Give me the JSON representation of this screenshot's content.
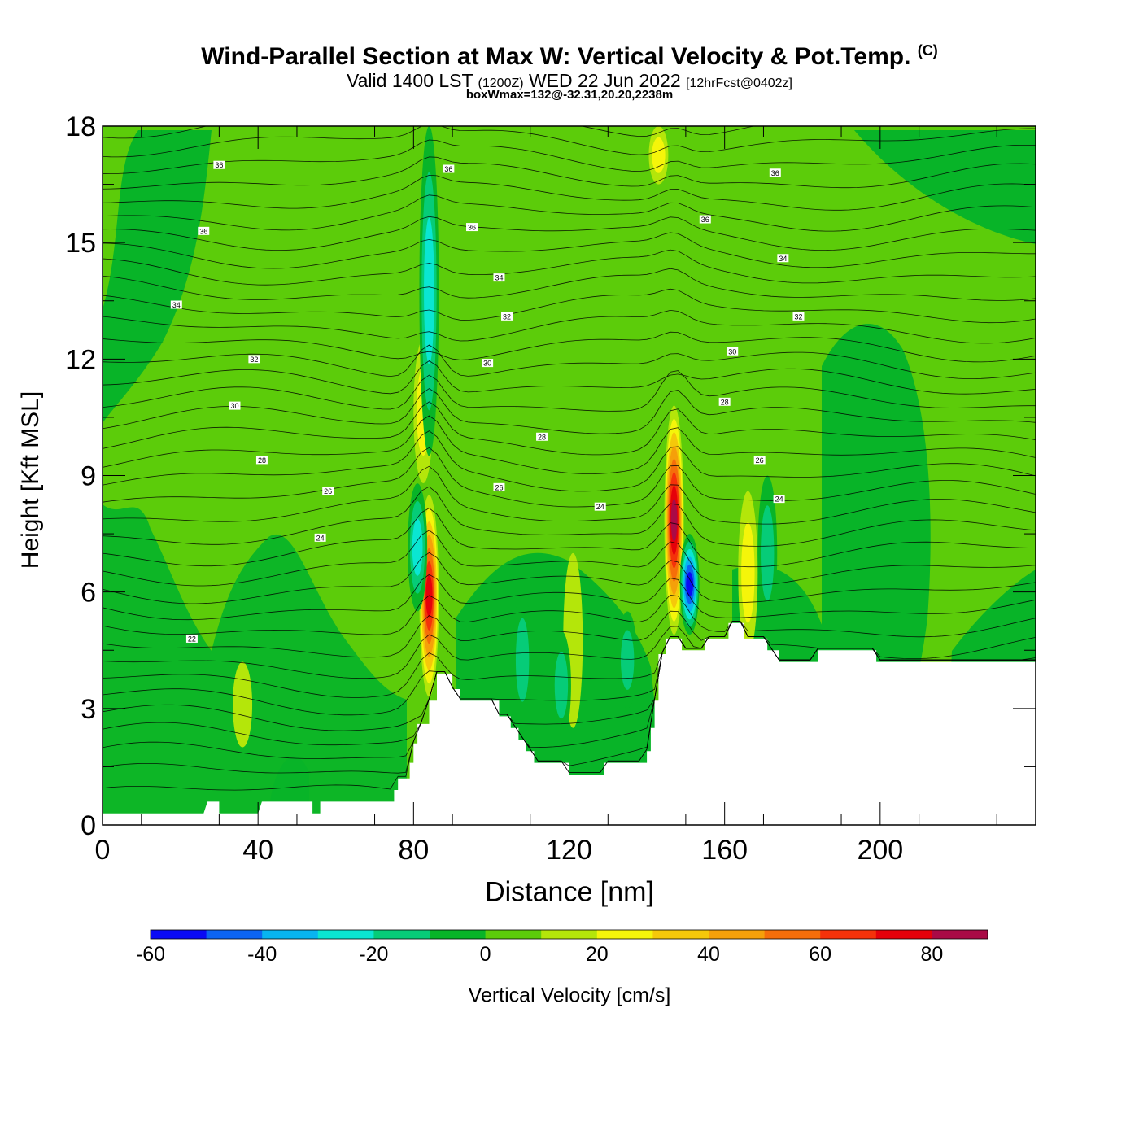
{
  "title": {
    "main": "Wind-Parallel Section at Max W: Vertical Velocity & Pot.Temp.",
    "copyright": "(C)",
    "valid_prefix": "Valid 1400 LST",
    "utc": "(1200Z)",
    "date": "WED 22 Jun 2022",
    "forecast": "[12hrFcst@0402z]",
    "box": "boxWmax=132@-32.31,20.20,2238m"
  },
  "chart_data": {
    "type": "heatmap",
    "xlabel": "Distance [nm]",
    "ylabel": "Height [Kft MSL]",
    "xlim": [
      0,
      240
    ],
    "ylim": [
      0,
      18
    ],
    "xticks": [
      "0",
      "40",
      "80",
      "120",
      "160",
      "200"
    ],
    "yticks": [
      "0",
      "3",
      "6",
      "9",
      "12",
      "15",
      "18"
    ],
    "xtick_values": [
      0,
      40,
      80,
      120,
      160,
      200
    ],
    "ytick_values": [
      0,
      3,
      6,
      9,
      12,
      15,
      18
    ],
    "colorbar": {
      "label": "Vertical Velocity [cm/s]",
      "min": -60,
      "max": 90,
      "step": 10,
      "tick_labels": [
        "-60",
        "-40",
        "-20",
        "0",
        "20",
        "40",
        "60",
        "80"
      ],
      "tick_values": [
        -60,
        -40,
        -20,
        0,
        20,
        40,
        60,
        80
      ],
      "colors": [
        "#0a0af5",
        "#0c64f2",
        "#08b4f0",
        "#0ae6d2",
        "#06cc78",
        "#08b428",
        "#5ccc0a",
        "#b4e60a",
        "#f5f50a",
        "#f5c80a",
        "#f5a00a",
        "#f56e0a",
        "#f5320a",
        "#e6000a",
        "#aa0a46"
      ]
    },
    "terrain_kft": [
      [
        0,
        0.3
      ],
      [
        26,
        0.3
      ],
      [
        27,
        0.6
      ],
      [
        30,
        0.6
      ],
      [
        30,
        0.3
      ],
      [
        40,
        0.3
      ],
      [
        41,
        0.6
      ],
      [
        54,
        0.6
      ],
      [
        54,
        0.3
      ],
      [
        56,
        0.3
      ],
      [
        56,
        0.6
      ],
      [
        75,
        0.6
      ],
      [
        75,
        0.9
      ],
      [
        76,
        0.9
      ],
      [
        76,
        1.2
      ],
      [
        79,
        1.2
      ],
      [
        79,
        1.6
      ],
      [
        80,
        1.6
      ],
      [
        80,
        2.1
      ],
      [
        81,
        2.1
      ],
      [
        81,
        2.6
      ],
      [
        84,
        2.6
      ],
      [
        84,
        3.2
      ],
      [
        86,
        3.2
      ],
      [
        86,
        3.9
      ],
      [
        90,
        3.9
      ],
      [
        90,
        3.5
      ],
      [
        92,
        3.5
      ],
      [
        92,
        3.2
      ],
      [
        102,
        3.2
      ],
      [
        102,
        2.8
      ],
      [
        105,
        2.8
      ],
      [
        105,
        2.5
      ],
      [
        107,
        2.5
      ],
      [
        107,
        2.2
      ],
      [
        109,
        2.2
      ],
      [
        109,
        1.9
      ],
      [
        111,
        1.9
      ],
      [
        111,
        1.6
      ],
      [
        120,
        1.6
      ],
      [
        120,
        1.3
      ],
      [
        129,
        1.3
      ],
      [
        129,
        1.6
      ],
      [
        140,
        1.6
      ],
      [
        140,
        1.9
      ],
      [
        141,
        1.9
      ],
      [
        141,
        2.5
      ],
      [
        142,
        2.5
      ],
      [
        142,
        3.2
      ],
      [
        143,
        3.2
      ],
      [
        143,
        4.4
      ],
      [
        145,
        4.4
      ],
      [
        145,
        4.8
      ],
      [
        149,
        4.8
      ],
      [
        149,
        4.5
      ],
      [
        155,
        4.5
      ],
      [
        155,
        4.8
      ],
      [
        161,
        4.8
      ],
      [
        161,
        5.2
      ],
      [
        165,
        5.2
      ],
      [
        165,
        4.8
      ],
      [
        171,
        4.8
      ],
      [
        171,
        4.5
      ],
      [
        174,
        4.5
      ],
      [
        174,
        4.2
      ],
      [
        184,
        4.2
      ],
      [
        184,
        4.5
      ],
      [
        199,
        4.5
      ],
      [
        199,
        4.2
      ],
      [
        240,
        4.2
      ]
    ],
    "updrafts": [
      {
        "x": 84,
        "y0": 3.3,
        "y1": 8.5,
        "w_max": 70
      },
      {
        "x": 82.5,
        "y0": 8.8,
        "y1": 12.5,
        "w_max": 25
      },
      {
        "x": 147,
        "y0": 4.9,
        "y1": 10.8,
        "w_max": 85
      },
      {
        "x": 166,
        "y0": 4.4,
        "y1": 8.6,
        "w_max": 25
      },
      {
        "x": 121,
        "y0": 2.5,
        "y1": 7.0,
        "w_max": 15
      },
      {
        "x": 36,
        "y0": 2.0,
        "y1": 4.2,
        "w_max": 15
      },
      {
        "x": 143,
        "y0": 16.5,
        "y1": 18,
        "w_max": 20
      }
    ],
    "downdrafts": [
      {
        "x": 81,
        "y0": 5.5,
        "y1": 8.8,
        "w_min": -25
      },
      {
        "x": 84,
        "y0": 9.5,
        "y1": 18,
        "w_min": -25
      },
      {
        "x": 151,
        "y0": 4.9,
        "y1": 7.5,
        "w_min": -55
      },
      {
        "x": 171,
        "y0": 5.0,
        "y1": 9.0,
        "w_min": -20
      },
      {
        "x": 108,
        "y0": 2.5,
        "y1": 6.0,
        "w_min": -15
      },
      {
        "x": 118,
        "y0": 2.2,
        "y1": 5.0,
        "w_min": -15
      },
      {
        "x": 135,
        "y0": 3.0,
        "y1": 5.5,
        "w_min": -15
      }
    ],
    "theta_contour_labels": [
      {
        "text": "22",
        "x": 23,
        "y": 4.8
      },
      {
        "text": "24",
        "x": 56,
        "y": 7.4
      },
      {
        "text": "24",
        "x": 128,
        "y": 8.2
      },
      {
        "text": "24",
        "x": 174,
        "y": 8.4
      },
      {
        "text": "26",
        "x": 58,
        "y": 8.6
      },
      {
        "text": "26",
        "x": 102,
        "y": 8.7
      },
      {
        "text": "26",
        "x": 169,
        "y": 9.4
      },
      {
        "text": "28",
        "x": 41,
        "y": 9.4
      },
      {
        "text": "28",
        "x": 113,
        "y": 10.0
      },
      {
        "text": "28",
        "x": 160,
        "y": 10.9
      },
      {
        "text": "30",
        "x": 34,
        "y": 10.8
      },
      {
        "text": "30",
        "x": 99,
        "y": 11.9
      },
      {
        "text": "30",
        "x": 162,
        "y": 12.2
      },
      {
        "text": "32",
        "x": 39,
        "y": 12.0
      },
      {
        "text": "32",
        "x": 104,
        "y": 13.1
      },
      {
        "text": "32",
        "x": 179,
        "y": 13.1
      },
      {
        "text": "34",
        "x": 19,
        "y": 13.4
      },
      {
        "text": "34",
        "x": 102,
        "y": 14.1
      },
      {
        "text": "34",
        "x": 175,
        "y": 14.6
      },
      {
        "text": "36",
        "x": 26,
        "y": 15.3
      },
      {
        "text": "36",
        "x": 95,
        "y": 15.4
      },
      {
        "text": "36",
        "x": 155,
        "y": 15.6
      },
      {
        "text": "36",
        "x": 30,
        "y": 17.0
      },
      {
        "text": "36",
        "x": 89,
        "y": 16.9
      },
      {
        "text": "36",
        "x": 173,
        "y": 16.8
      }
    ]
  }
}
